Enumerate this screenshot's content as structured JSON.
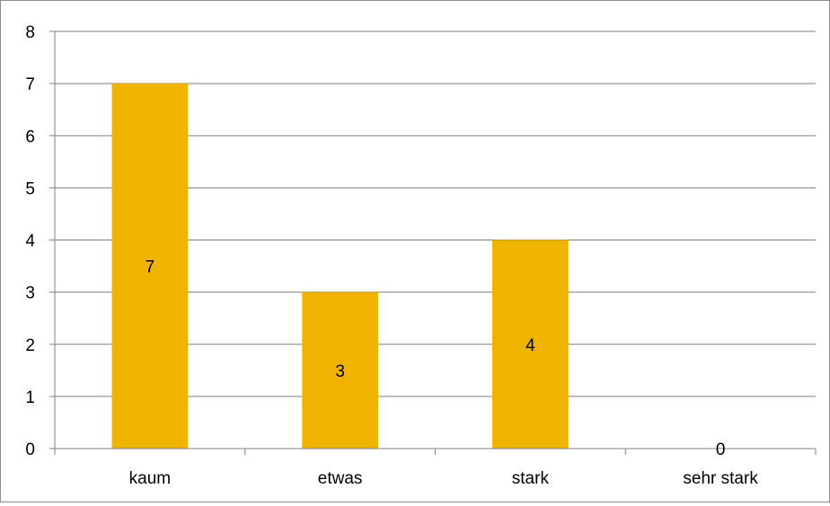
{
  "chart_data": {
    "type": "bar",
    "categories": [
      "kaum",
      "etwas",
      "stark",
      "sehr stark"
    ],
    "values": [
      7,
      3,
      4,
      0
    ],
    "data_labels": [
      "7",
      "3",
      "4",
      "0"
    ],
    "title": "",
    "xlabel": "",
    "ylabel": "",
    "ylim": [
      0,
      8
    ],
    "yticks": [
      "0",
      "1",
      "2",
      "3",
      "4",
      "5",
      "6",
      "7",
      "8"
    ],
    "grid": true,
    "legend": "none",
    "colors": {
      "bar": "#f0b400",
      "grid": "#808080",
      "axis": "#808080"
    }
  }
}
